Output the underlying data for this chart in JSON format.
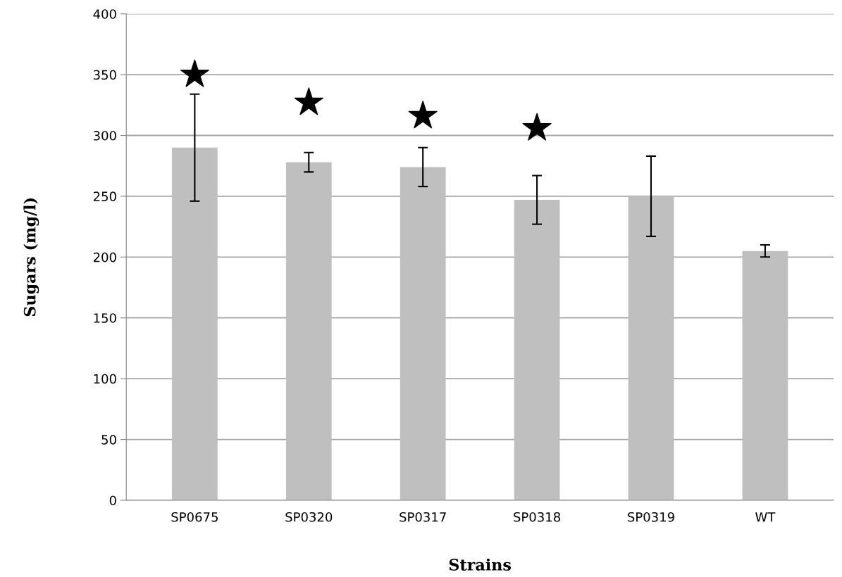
{
  "chart_data": {
    "type": "bar",
    "xlabel": "Strains",
    "ylabel": "Sugars (mg/l)",
    "categories": [
      "SP0675",
      "SP0320",
      "SP0317",
      "SP0318",
      "SP0319",
      "WT"
    ],
    "series": [
      {
        "type": "bar",
        "color": "#bfbfbf",
        "values": [
          290,
          278,
          274,
          247,
          250,
          205
        ],
        "errors": [
          44,
          8,
          16,
          20,
          33,
          5
        ]
      },
      {
        "type": "scatter",
        "color": "#000000",
        "marker": "star",
        "x": [
          "SP0675",
          "SP0320",
          "SP0317",
          "SP0318"
        ],
        "values": [
          350,
          327,
          316,
          306
        ]
      }
    ],
    "ylim": [
      0,
      400
    ],
    "yticks": [
      0,
      50,
      100,
      150,
      200,
      250,
      300,
      350,
      400
    ],
    "grid": "y"
  }
}
